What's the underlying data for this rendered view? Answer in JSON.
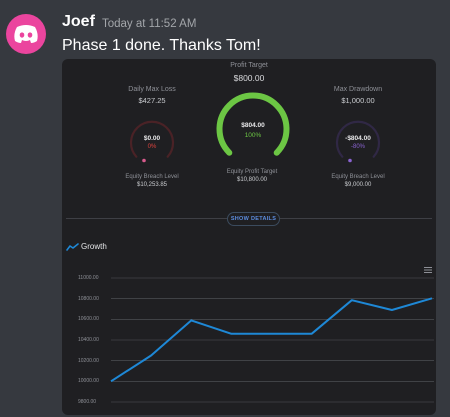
{
  "message": {
    "author": "Joef",
    "timestamp": "Today at 11:52 AM",
    "content": "Phase 1 done. Thanks Tom!"
  },
  "dashboard": {
    "profit_target": {
      "label": "Profit Target",
      "value": "$800.00"
    },
    "daily_max_loss": {
      "label": "Daily Max Loss",
      "value": "$427.25",
      "gauge_value": "$0.00",
      "gauge_percent": "0%",
      "breach_label": "Equity Breach Level",
      "breach_value": "$10,253.85",
      "fraction": 0
    },
    "profit_gauge": {
      "gauge_value": "$804.00",
      "gauge_percent": "100%",
      "target_label": "Equity Profit Target",
      "target_value": "$10,800.00",
      "fraction": 1.0
    },
    "max_drawdown": {
      "label": "Max Drawdown",
      "value": "$1,000.00",
      "gauge_value": "-$804.00",
      "gauge_percent": "-80%",
      "breach_label": "Equity Breach Level",
      "breach_value": "$9,000.00",
      "fraction": 0
    },
    "show_details_label": "SHOW DETAILS",
    "colors": {
      "green": "#6cc644",
      "red": "#e0443f",
      "purple": "#8a63d2",
      "blue": "#1e88d6"
    }
  },
  "growth": {
    "title": "Growth",
    "icon": "trend-line-icon",
    "menu_icon": "hamburger-menu-icon"
  },
  "chart_data": {
    "type": "line",
    "title": "Growth",
    "y_ticks": [
      "11000.00",
      "10800.00",
      "10600.00",
      "10400.00",
      "10200.00",
      "10000.00",
      "9800.00"
    ],
    "ylim": [
      9800,
      11000
    ],
    "x": [
      0,
      1,
      2,
      3,
      4,
      5,
      6,
      7,
      8
    ],
    "series": [
      {
        "values": [
          10000,
          10250,
          10590,
          10460,
          10460,
          10460,
          10785,
          10690,
          10804
        ]
      }
    ]
  }
}
